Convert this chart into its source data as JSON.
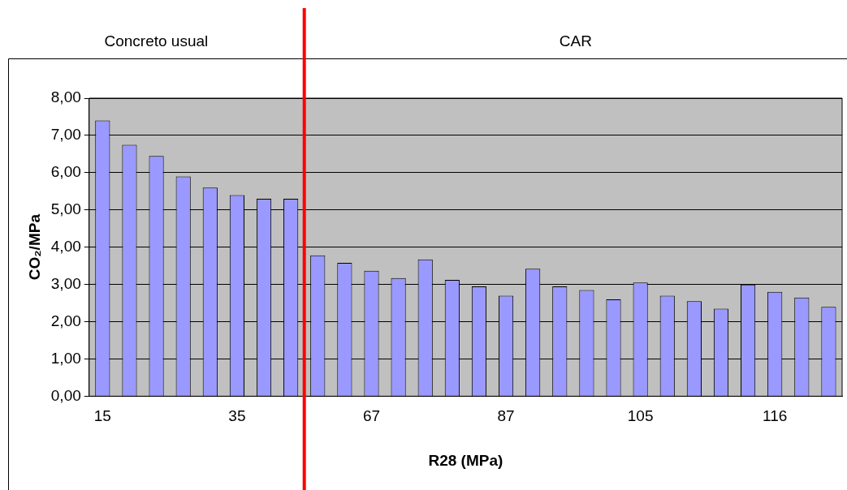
{
  "chart_data": {
    "type": "bar",
    "xlabel": "R28 (MPa)",
    "ylabel": "CO₂/MPa",
    "categories": [
      "15",
      null,
      null,
      null,
      null,
      "35",
      null,
      null,
      null,
      null,
      "67",
      null,
      null,
      null,
      null,
      "87",
      null,
      null,
      null,
      null,
      "105",
      null,
      null,
      null,
      null,
      "116",
      null,
      null
    ],
    "values": [
      7.4,
      6.75,
      6.45,
      5.9,
      5.6,
      5.4,
      5.3,
      5.3,
      3.78,
      3.58,
      3.37,
      3.17,
      3.67,
      3.12,
      2.95,
      2.7,
      3.42,
      2.95,
      2.85,
      2.6,
      3.05,
      2.7,
      2.55,
      2.35,
      3.0,
      2.8,
      2.65,
      2.4
    ],
    "color": "#9999ff",
    "ylim": [
      0,
      8
    ],
    "yticks": [
      {
        "value": 0,
        "label": "0,00"
      },
      {
        "value": 1,
        "label": "1,00"
      },
      {
        "value": 2,
        "label": "2,00"
      },
      {
        "value": 3,
        "label": "3,00"
      },
      {
        "value": 4,
        "label": "4,00"
      },
      {
        "value": 5,
        "label": "5,00"
      },
      {
        "value": 6,
        "label": "6,00"
      },
      {
        "value": 7,
        "label": "7,00"
      },
      {
        "value": 8,
        "label": "8,00"
      }
    ],
    "grid": "y",
    "legend": false,
    "annotations": [
      "Concreto usual",
      "CAR"
    ]
  }
}
